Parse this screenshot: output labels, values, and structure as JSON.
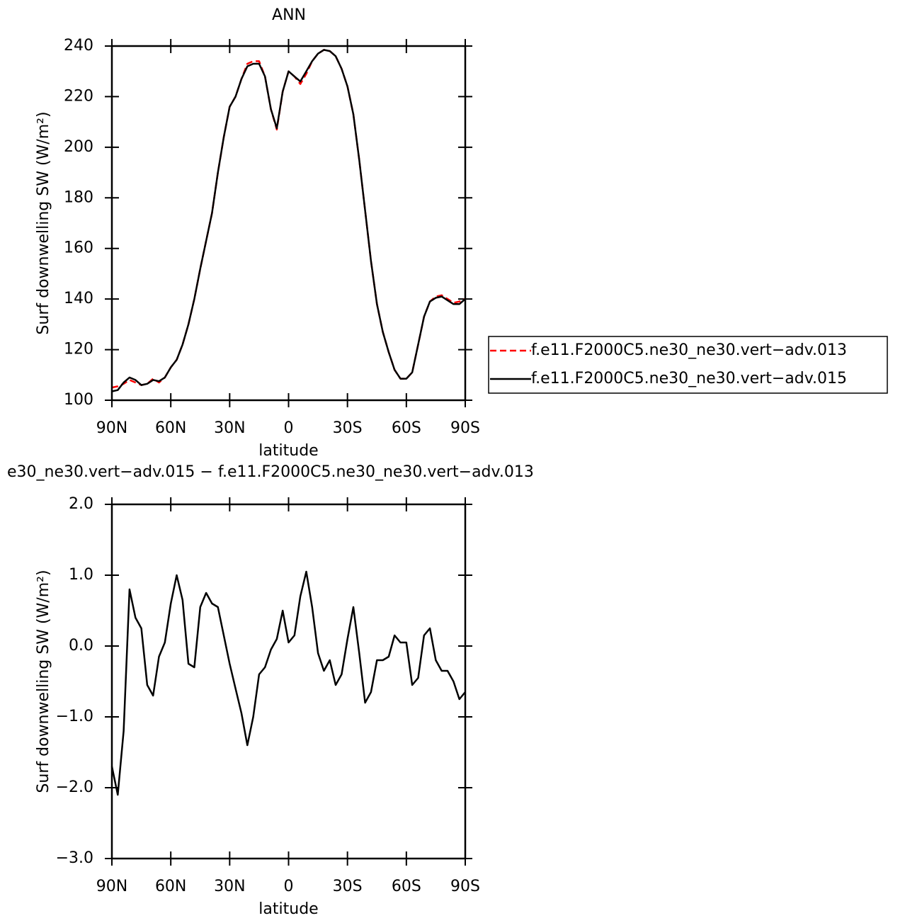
{
  "chart_data": [
    {
      "type": "line",
      "title": "ANN",
      "xlabel": "latitude",
      "ylabel": "Surf downwelling SW (W/m²)",
      "xlim": [
        90,
        -90
      ],
      "xticks": [
        {
          "value": 90,
          "label": "90N"
        },
        {
          "value": 60,
          "label": "60N"
        },
        {
          "value": 30,
          "label": "30N"
        },
        {
          "value": 0,
          "label": "0"
        },
        {
          "value": -30,
          "label": "30S"
        },
        {
          "value": -60,
          "label": "60S"
        },
        {
          "value": -90,
          "label": "90S"
        }
      ],
      "ylim": [
        100,
        240
      ],
      "yticks": [
        100,
        120,
        140,
        160,
        180,
        200,
        220,
        240
      ],
      "legend": "right",
      "x": [
        90,
        87,
        84,
        81,
        78,
        75,
        72,
        69,
        66,
        63,
        60,
        57,
        54,
        51,
        48,
        45,
        42,
        39,
        36,
        33,
        30,
        27,
        24,
        21,
        18,
        15,
        12,
        9,
        6,
        3,
        0,
        -3,
        -6,
        -9,
        -12,
        -15,
        -18,
        -21,
        -24,
        -27,
        -30,
        -33,
        -36,
        -39,
        -42,
        -45,
        -48,
        -51,
        -54,
        -57,
        -60,
        -63,
        -66,
        -69,
        -72,
        -75,
        -78,
        -81,
        -84,
        -87,
        -90
      ],
      "series": [
        {
          "name": "f.e11.F2000C5.ne30_ne30.vert−adv.013",
          "color": "#ff0000",
          "dash": "dashed",
          "values": [
            105,
            105.5,
            106.5,
            108,
            107,
            106,
            106.5,
            108.5,
            107,
            109,
            113,
            116,
            122,
            130,
            140,
            152,
            163,
            174,
            190,
            204,
            216,
            220,
            227,
            233,
            234,
            234,
            228,
            215,
            207,
            222,
            230,
            228,
            225,
            229,
            234,
            237,
            238.5,
            238,
            236,
            231,
            224,
            213,
            195,
            175,
            155,
            138,
            127,
            119,
            112,
            108.5,
            108.5,
            111,
            122,
            133,
            139,
            141,
            141.5,
            140,
            138.5,
            139,
            140
          ]
        },
        {
          "name": "f.e11.F2000C5.ne30_ne30.vert−adv.015",
          "color": "#000000",
          "dash": "solid",
          "values": [
            103.5,
            104,
            107,
            109,
            108,
            106,
            106.5,
            108,
            107.5,
            109,
            113,
            116,
            122,
            130,
            140,
            152,
            163,
            174,
            190,
            204,
            216,
            220,
            227,
            232,
            233,
            233,
            228,
            215,
            207.5,
            222,
            230,
            228,
            226,
            230,
            234,
            237,
            238.5,
            238,
            236,
            231,
            224,
            213,
            195,
            175,
            155,
            138,
            127,
            119,
            112,
            108.5,
            108.5,
            111,
            122,
            133,
            139,
            140.5,
            141,
            139.5,
            138,
            138,
            140
          ]
        }
      ]
    },
    {
      "type": "line",
      "title": "e30_ne30.vert−adv.015 − f.e11.F2000C5.ne30_ne30.vert−adv.013",
      "xlabel": "latitude",
      "ylabel": "Surf downwelling SW (W/m²)",
      "xlim": [
        90,
        -90
      ],
      "xticks": [
        {
          "value": 90,
          "label": "90N"
        },
        {
          "value": 60,
          "label": "60N"
        },
        {
          "value": 30,
          "label": "30N"
        },
        {
          "value": 0,
          "label": "0"
        },
        {
          "value": -30,
          "label": "30S"
        },
        {
          "value": -60,
          "label": "60S"
        },
        {
          "value": -90,
          "label": "90S"
        }
      ],
      "ylim": [
        -3,
        2
      ],
      "yticks": [
        {
          "value": -3,
          "label": "−3.0"
        },
        {
          "value": -2,
          "label": "−2.0"
        },
        {
          "value": -1,
          "label": "−1.0"
        },
        {
          "value": 0,
          "label": "0.0"
        },
        {
          "value": 1,
          "label": "1.0"
        },
        {
          "value": 2,
          "label": "2.0"
        }
      ],
      "x": [
        90,
        87,
        84,
        81,
        78,
        75,
        72,
        69,
        66,
        63,
        60,
        57,
        54,
        51,
        48,
        45,
        42,
        39,
        36,
        33,
        30,
        27,
        24,
        21,
        18,
        15,
        12,
        9,
        6,
        3,
        0,
        -3,
        -6,
        -9,
        -12,
        -15,
        -18,
        -21,
        -24,
        -27,
        -30,
        -33,
        -36,
        -39,
        -42,
        -45,
        -48,
        -51,
        -54,
        -57,
        -60,
        -63,
        -66,
        -69,
        -72,
        -75,
        -78,
        -81,
        -84,
        -87,
        -90
      ],
      "series": [
        {
          "color": "#000000",
          "dash": "solid",
          "values": [
            -1.7,
            -2.1,
            -1.2,
            0.8,
            0.4,
            0.25,
            -0.55,
            -0.7,
            -0.15,
            0.05,
            0.6,
            1.0,
            0.65,
            -0.25,
            -0.3,
            0.55,
            0.75,
            0.6,
            0.55,
            0.15,
            -0.25,
            -0.6,
            -0.95,
            -1.4,
            -1.0,
            -0.4,
            -0.3,
            -0.05,
            0.1,
            0.5,
            0.05,
            0.15,
            0.7,
            1.05,
            0.55,
            -0.1,
            -0.35,
            -0.2,
            -0.55,
            -0.4,
            0.1,
            0.55,
            -0.1,
            -0.8,
            -0.65,
            -0.2,
            -0.2,
            -0.15,
            0.15,
            0.05,
            0.05,
            -0.55,
            -0.45,
            0.15,
            0.25,
            -0.2,
            -0.35,
            -0.35,
            -0.5,
            -0.75,
            -0.65
          ]
        }
      ]
    }
  ]
}
